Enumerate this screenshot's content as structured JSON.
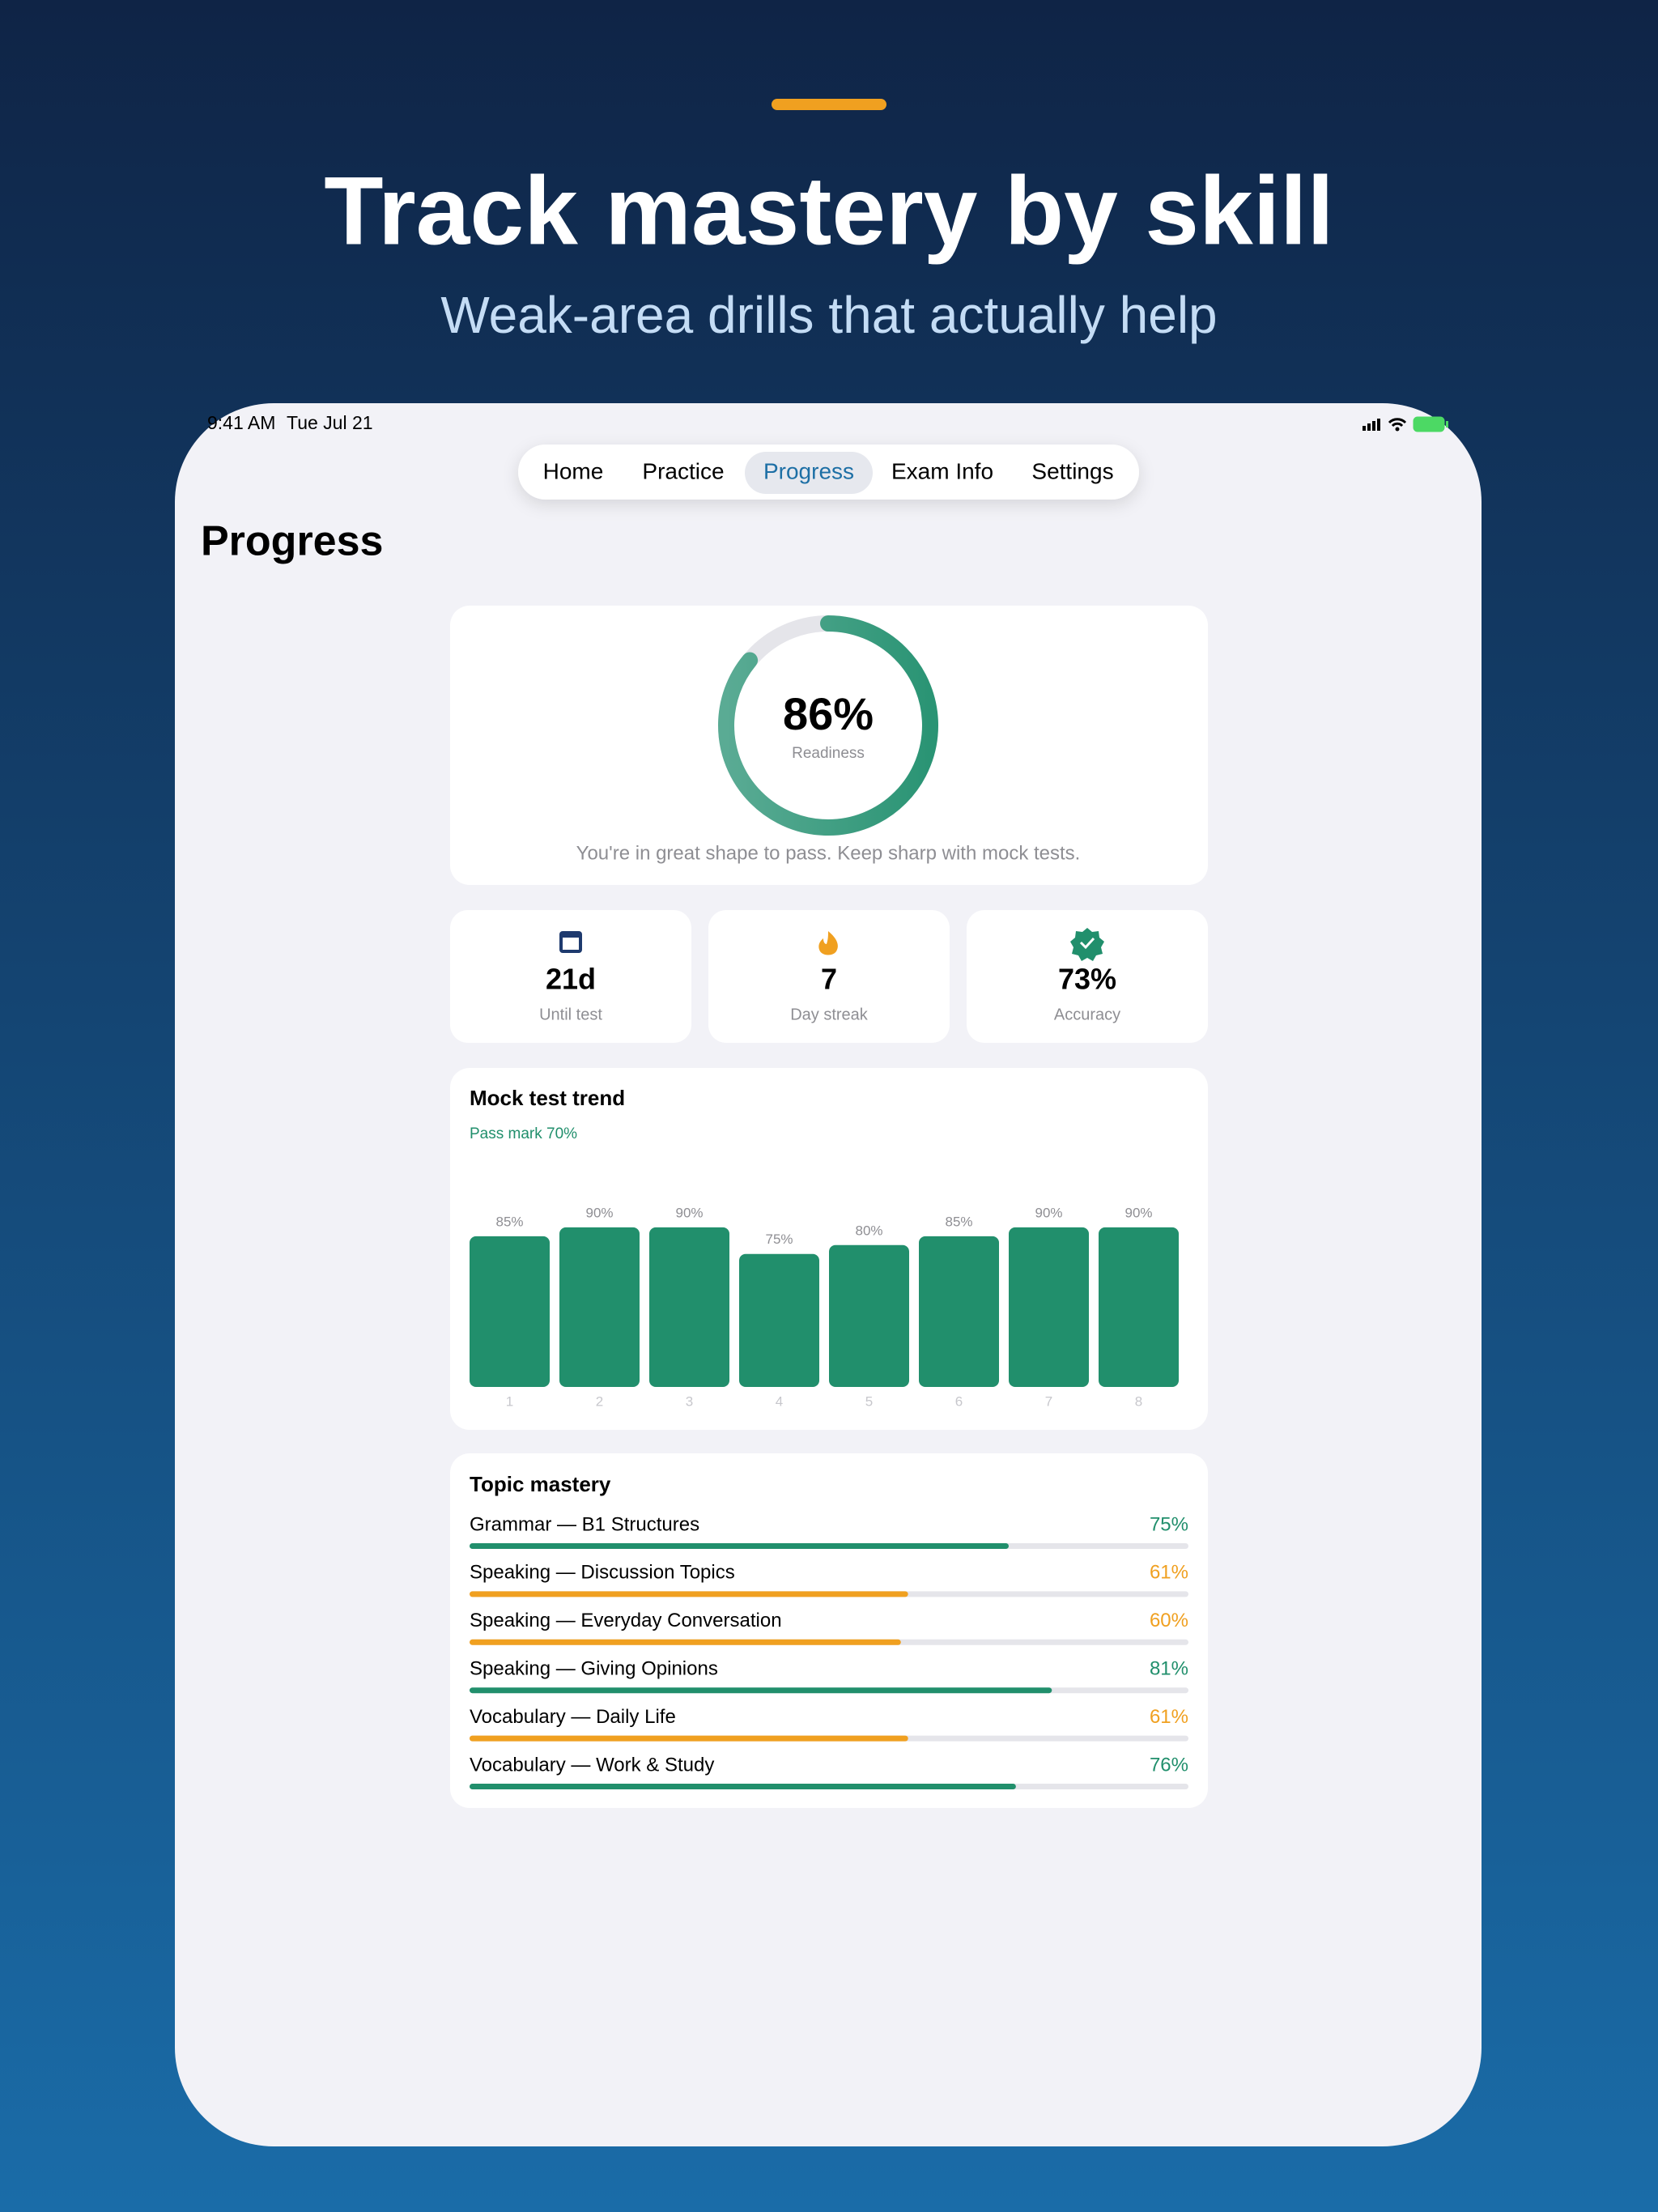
{
  "header": {
    "title": "Track mastery by skill",
    "subtitle": "Weak-area drills that actually help"
  },
  "status_bar": {
    "time": "9:41 AM",
    "date": "Tue Jul 21"
  },
  "nav": {
    "items": [
      "Home",
      "Practice",
      "Progress",
      "Exam Info",
      "Settings"
    ],
    "selected": 2
  },
  "page_title": "Progress",
  "readiness": {
    "value": 86,
    "value_label": "86%",
    "label": "Readiness",
    "caption": "You're in great shape to pass. Keep sharp with mock tests."
  },
  "stats": [
    {
      "value": "21d",
      "label": "Until test"
    },
    {
      "value": "7",
      "label": "Day streak"
    },
    {
      "value": "73%",
      "label": "Accuracy"
    }
  ],
  "mock_trend": {
    "title": "Mock test trend",
    "pass_mark": "Pass mark 70%",
    "categories": [
      "1",
      "2",
      "3",
      "4",
      "5",
      "6",
      "7",
      "8"
    ],
    "values": [
      85,
      90,
      90,
      75,
      80,
      85,
      90,
      90
    ],
    "value_labels": [
      "85%",
      "90%",
      "90%",
      "75%",
      "80%",
      "85%",
      "90%",
      "90%"
    ],
    "color": "#218f6c"
  },
  "topic_mastery": {
    "title": "Topic mastery",
    "topics": [
      {
        "name": "Grammar — B1 Structures",
        "value": 75,
        "value_label": "75%",
        "color": "#218f6c"
      },
      {
        "name": "Speaking — Discussion Topics",
        "value": 61,
        "value_label": "61%",
        "color": "#f0a020"
      },
      {
        "name": "Speaking — Everyday Conversation",
        "value": 60,
        "value_label": "60%",
        "color": "#f0a020"
      },
      {
        "name": "Speaking — Giving Opinions",
        "value": 81,
        "value_label": "81%",
        "color": "#218f6c"
      },
      {
        "name": "Vocabulary — Daily Life",
        "value": 61,
        "value_label": "61%",
        "color": "#f0a020"
      },
      {
        "name": "Vocabulary — Work & Study",
        "value": 76,
        "value_label": "76%",
        "color": "#218f6c"
      }
    ]
  }
}
